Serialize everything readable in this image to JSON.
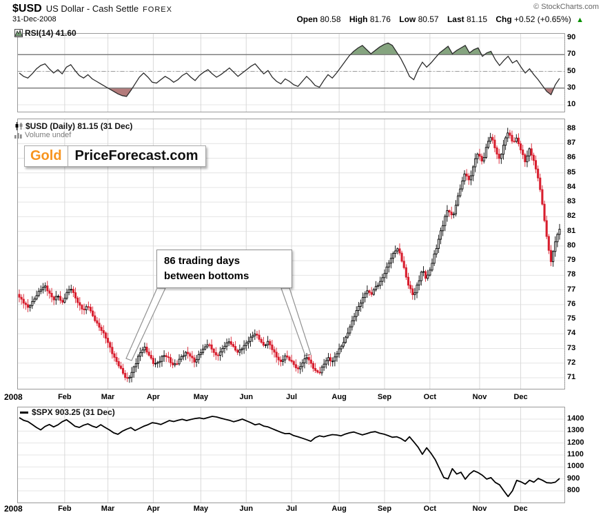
{
  "header": {
    "symbol": "$USD",
    "description": "US Dollar - Cash Settle",
    "exchange": "FOREX",
    "source": "© StockCharts.com",
    "date": "31-Dec-2008",
    "quote": {
      "open_label": "Open",
      "open": "80.58",
      "high_label": "High",
      "high": "81.76",
      "low_label": "Low",
      "low": "80.57",
      "last_label": "Last",
      "last": "81.15",
      "chg_label": "Chg",
      "chg": "+0.52 (+0.65%)",
      "up_icon": "▲"
    },
    "accent_green": "#089000"
  },
  "rsi": {
    "label": "RSI(14) 41.60"
  },
  "main": {
    "label": "$USD (Daily) 81.15 (31 Dec)",
    "volume_label": "Volume undef",
    "annotation": {
      "line1": "86 trading days",
      "line2": "between bottoms"
    },
    "logo": {
      "part1": "Gold",
      "part2": "PriceForecast.com"
    }
  },
  "spx": {
    "label": "$SPX 903.25 (31 Dec)"
  },
  "x_axis": {
    "year": "2008",
    "months": [
      "Feb",
      "Mar",
      "Apr",
      "May",
      "Jun",
      "Jul",
      "Aug",
      "Sep",
      "Oct",
      "Nov",
      "Dec"
    ],
    "month_start_day": [
      21,
      41,
      62,
      84,
      105,
      126,
      148,
      169,
      190,
      213,
      232
    ],
    "total_days": 251
  },
  "colors": {
    "candle_down": "#d81e2e",
    "candle_up_stroke": "#000000",
    "rsi_line": "#2a2a2a",
    "rsi_overbought_fill": "#85a47f",
    "rsi_oversold_fill": "#b47c7c",
    "level_line": "#7f7f7f",
    "grid_h": "#e4e4e4",
    "grid_v": "#d9d9d9",
    "panel_border": "#999999",
    "spx_line": "#000000",
    "logo_orange": "#F7941E"
  },
  "chart_data": [
    {
      "panel": "rsi",
      "type": "line",
      "title": "RSI(14)",
      "last_value": 41.6,
      "ylim": [
        0,
        100
      ],
      "yticks": [
        90,
        70,
        50,
        30,
        10
      ],
      "overbought_level": 70,
      "oversold_level": 30,
      "mid_level": 50,
      "x_range": "Jan 2008 - Dec 2008, sampled every ~2 trading days",
      "values": [
        48,
        44,
        42,
        47,
        53,
        57,
        59,
        53,
        48,
        52,
        47,
        55,
        58,
        51,
        45,
        42,
        46,
        41,
        38,
        35,
        32,
        29,
        26,
        23,
        21,
        20,
        27,
        35,
        43,
        48,
        43,
        37,
        36,
        40,
        44,
        41,
        37,
        40,
        45,
        48,
        43,
        39,
        45,
        49,
        52,
        47,
        43,
        46,
        50,
        54,
        49,
        44,
        48,
        52,
        56,
        59,
        53,
        47,
        51,
        43,
        38,
        35,
        41,
        38,
        34,
        32,
        38,
        44,
        39,
        33,
        31,
        39,
        46,
        42,
        48,
        55,
        62,
        69,
        74,
        78,
        81,
        76,
        71,
        75,
        79,
        82,
        84,
        81,
        73,
        65,
        55,
        44,
        40,
        52,
        61,
        55,
        60,
        66,
        72,
        76,
        80,
        71,
        75,
        78,
        81,
        72,
        76,
        78,
        68,
        72,
        74,
        64,
        57,
        63,
        68,
        60,
        63,
        55,
        48,
        53,
        46,
        40,
        33,
        26,
        22,
        34,
        41.6
      ]
    },
    {
      "panel": "price",
      "type": "candlestick",
      "title": "$USD (Daily)",
      "last_value": 81.15,
      "open": 80.58,
      "high": 81.76,
      "low": 80.57,
      "chg": "+0.52 (+0.65%)",
      "ylim": [
        70.2,
        88.8
      ],
      "yticks": [
        88,
        87,
        86,
        85,
        84,
        83,
        82,
        81,
        80,
        79,
        78,
        77,
        76,
        75,
        74,
        73,
        72,
        71
      ],
      "annotation": "86 trading days between bottoms (mid-Mar low ~70.7 to mid-Jul low ~71.3)",
      "close": [
        76.5,
        76.1,
        75.8,
        76.2,
        76.6,
        77.0,
        77.3,
        76.8,
        76.3,
        76.6,
        76.1,
        76.8,
        77.1,
        76.5,
        76.0,
        75.6,
        75.9,
        75.3,
        74.8,
        74.3,
        73.8,
        73.2,
        72.5,
        71.9,
        71.4,
        70.9,
        71.2,
        71.9,
        72.6,
        73.1,
        72.7,
        72.1,
        71.9,
        72.3,
        72.6,
        72.2,
        71.8,
        72.1,
        72.5,
        72.8,
        72.4,
        72.0,
        72.7,
        73.0,
        73.3,
        72.9,
        72.5,
        72.8,
        73.2,
        73.5,
        73.1,
        72.7,
        73.0,
        73.4,
        73.8,
        74.0,
        73.6,
        73.2,
        73.5,
        72.9,
        72.4,
        72.1,
        72.5,
        72.2,
        71.9,
        71.6,
        72.0,
        72.4,
        72.0,
        71.5,
        71.3,
        71.9,
        72.4,
        72.1,
        72.6,
        73.1,
        73.7,
        74.4,
        75.1,
        75.8,
        76.4,
        77.0,
        76.6,
        77.2,
        77.5,
        78.0,
        78.7,
        79.4,
        79.9,
        79.3,
        78.1,
        77.1,
        76.6,
        77.5,
        78.4,
        77.7,
        78.6,
        79.6,
        80.7,
        81.7,
        82.6,
        81.9,
        83.0,
        84.1,
        85.1,
        84.4,
        85.6,
        86.4,
        85.7,
        86.9,
        87.5,
        86.6,
        85.9,
        87.0,
        87.8,
        87.1,
        87.4,
        86.5,
        85.7,
        86.7,
        85.8,
        84.6,
        82.8,
        80.6,
        78.9,
        80.3,
        81.15
      ]
    },
    {
      "panel": "spx",
      "type": "line",
      "title": "$SPX",
      "last_value": 903.25,
      "ylim": [
        700,
        1500
      ],
      "yticks": [
        1400,
        1300,
        1200,
        1100,
        1000,
        900,
        800
      ],
      "values": [
        1412,
        1390,
        1380,
        1355,
        1330,
        1310,
        1338,
        1355,
        1335,
        1352,
        1378,
        1395,
        1368,
        1340,
        1331,
        1349,
        1360,
        1342,
        1330,
        1353,
        1331,
        1310,
        1285,
        1273,
        1298,
        1315,
        1329,
        1305,
        1322,
        1340,
        1353,
        1370,
        1365,
        1355,
        1372,
        1388,
        1380,
        1390,
        1398,
        1388,
        1397,
        1405,
        1410,
        1403,
        1413,
        1423,
        1418,
        1408,
        1398,
        1390,
        1378,
        1388,
        1400,
        1385,
        1370,
        1352,
        1360,
        1342,
        1335,
        1320,
        1305,
        1290,
        1278,
        1280,
        1262,
        1252,
        1240,
        1228,
        1215,
        1245,
        1260,
        1252,
        1262,
        1270,
        1267,
        1260,
        1275,
        1285,
        1292,
        1280,
        1268,
        1278,
        1290,
        1295,
        1282,
        1275,
        1262,
        1248,
        1252,
        1238,
        1215,
        1252,
        1210,
        1165,
        1106,
        1160,
        1115,
        1060,
        985,
        910,
        900,
        985,
        940,
        955,
        897,
        940,
        968,
        952,
        930,
        898,
        910,
        870,
        850,
        800,
        752,
        800,
        887,
        875,
        856,
        888,
        872,
        904,
        888,
        868,
        865,
        872,
        903
      ]
    }
  ]
}
